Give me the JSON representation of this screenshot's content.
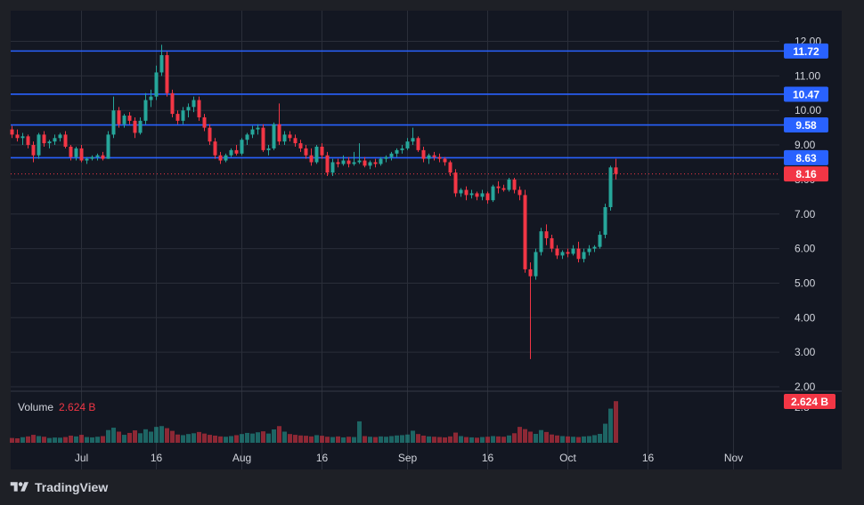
{
  "chart_data": {
    "type": "candlestick",
    "y_ticks": [
      "2.00",
      "3.00",
      "4.00",
      "5.00",
      "6.00",
      "7.00",
      "8.00",
      "9.00",
      "10.00",
      "11.00",
      "12.00"
    ],
    "ylim": [
      2.0,
      12.0
    ],
    "x_ticks": [
      {
        "label": "Jul",
        "bar": 13
      },
      {
        "label": "16",
        "bar": 27
      },
      {
        "label": "Aug",
        "bar": 43
      },
      {
        "label": "16",
        "bar": 58
      },
      {
        "label": "Sep",
        "bar": 74
      },
      {
        "label": "16",
        "bar": 89
      },
      {
        "label": "Oct",
        "bar": 104
      },
      {
        "label": "16",
        "bar": 119
      },
      {
        "label": "Nov",
        "bar": 135
      }
    ],
    "horizontal_lines": [
      {
        "value": 11.72,
        "label": "11.72",
        "color": "#2962ff"
      },
      {
        "value": 10.47,
        "label": "10.47",
        "color": "#2962ff"
      },
      {
        "value": 9.58,
        "label": "9.58",
        "color": "#2962ff"
      },
      {
        "value": 8.63,
        "label": "8.63",
        "color": "#2962ff"
      }
    ],
    "last_price": {
      "value": 8.16,
      "label": "8.16",
      "color": "#f23645"
    },
    "volume": {
      "label": "Volume",
      "value": "2.624 B",
      "badge": "2.624 B",
      "axis_label": "2.8"
    },
    "colors": {
      "up": "#26a69a",
      "down": "#f23645",
      "background": "#131722",
      "grid": "#2a2e39"
    },
    "candles": [
      [
        9.45,
        9.55,
        9.2,
        9.3
      ],
      [
        9.3,
        9.45,
        9.1,
        9.2
      ],
      [
        9.2,
        9.35,
        9.0,
        9.25
      ],
      [
        9.25,
        9.3,
        8.9,
        9.0
      ],
      [
        9.0,
        9.1,
        8.5,
        8.7
      ],
      [
        8.7,
        9.35,
        8.6,
        9.3
      ],
      [
        9.3,
        9.4,
        8.95,
        9.05
      ],
      [
        9.05,
        9.15,
        8.9,
        9.1
      ],
      [
        9.1,
        9.3,
        9.0,
        9.2
      ],
      [
        9.2,
        9.35,
        9.1,
        9.3
      ],
      [
        9.3,
        9.4,
        8.9,
        8.95
      ],
      [
        8.95,
        9.0,
        8.55,
        8.65
      ],
      [
        8.65,
        8.95,
        8.55,
        8.9
      ],
      [
        8.9,
        9.0,
        8.5,
        8.55
      ],
      [
        8.55,
        8.65,
        8.45,
        8.6
      ],
      [
        8.6,
        8.7,
        8.55,
        8.65
      ],
      [
        8.65,
        8.75,
        8.55,
        8.7
      ],
      [
        8.7,
        8.8,
        8.55,
        8.6
      ],
      [
        8.6,
        9.4,
        8.6,
        9.3
      ],
      [
        9.3,
        10.4,
        9.2,
        10.0
      ],
      [
        10.0,
        10.1,
        9.5,
        9.6
      ],
      [
        9.6,
        9.9,
        9.5,
        9.85
      ],
      [
        9.85,
        9.95,
        9.6,
        9.7
      ],
      [
        9.7,
        9.8,
        9.2,
        9.35
      ],
      [
        9.35,
        9.8,
        9.3,
        9.7
      ],
      [
        9.7,
        10.5,
        9.6,
        10.3
      ],
      [
        10.3,
        10.6,
        10.1,
        10.4
      ],
      [
        10.4,
        11.3,
        10.3,
        11.1
      ],
      [
        11.1,
        11.9,
        11.0,
        11.6
      ],
      [
        11.6,
        11.7,
        10.4,
        10.5
      ],
      [
        10.5,
        10.6,
        9.8,
        9.9
      ],
      [
        9.9,
        10.0,
        9.6,
        9.7
      ],
      [
        9.7,
        10.1,
        9.6,
        10.0
      ],
      [
        10.0,
        10.2,
        9.8,
        10.1
      ],
      [
        10.1,
        10.4,
        9.95,
        10.3
      ],
      [
        10.3,
        10.4,
        9.7,
        9.8
      ],
      [
        9.8,
        9.9,
        9.4,
        9.5
      ],
      [
        9.5,
        9.6,
        9.0,
        9.1
      ],
      [
        9.1,
        9.2,
        8.6,
        8.7
      ],
      [
        8.7,
        8.8,
        8.45,
        8.55
      ],
      [
        8.55,
        8.75,
        8.5,
        8.7
      ],
      [
        8.7,
        8.9,
        8.65,
        8.85
      ],
      [
        8.85,
        9.0,
        8.7,
        8.75
      ],
      [
        8.75,
        9.2,
        8.7,
        9.15
      ],
      [
        9.15,
        9.35,
        9.0,
        9.3
      ],
      [
        9.3,
        9.55,
        9.2,
        9.45
      ],
      [
        9.45,
        9.6,
        9.3,
        9.5
      ],
      [
        9.5,
        9.6,
        8.8,
        8.85
      ],
      [
        8.85,
        9.0,
        8.7,
        8.9
      ],
      [
        8.9,
        9.65,
        8.85,
        9.6
      ],
      [
        9.6,
        10.2,
        9.0,
        9.1
      ],
      [
        9.1,
        9.4,
        9.0,
        9.3
      ],
      [
        9.3,
        9.4,
        9.1,
        9.2
      ],
      [
        9.2,
        9.3,
        8.95,
        9.05
      ],
      [
        9.05,
        9.15,
        8.8,
        8.9
      ],
      [
        8.9,
        9.0,
        8.6,
        8.7
      ],
      [
        8.7,
        8.9,
        8.4,
        8.5
      ],
      [
        8.5,
        9.0,
        8.45,
        8.95
      ],
      [
        8.95,
        9.05,
        8.6,
        8.7
      ],
      [
        8.7,
        8.8,
        8.1,
        8.2
      ],
      [
        8.2,
        8.6,
        8.1,
        8.5
      ],
      [
        8.5,
        8.6,
        8.35,
        8.45
      ],
      [
        8.45,
        8.7,
        8.4,
        8.55
      ],
      [
        8.55,
        8.65,
        8.35,
        8.45
      ],
      [
        8.45,
        8.8,
        8.4,
        8.5
      ],
      [
        8.5,
        9.05,
        8.45,
        8.55
      ],
      [
        8.55,
        8.65,
        8.35,
        8.4
      ],
      [
        8.4,
        8.55,
        8.3,
        8.5
      ],
      [
        8.5,
        8.6,
        8.35,
        8.45
      ],
      [
        8.45,
        8.65,
        8.4,
        8.6
      ],
      [
        8.6,
        8.7,
        8.5,
        8.65
      ],
      [
        8.65,
        8.8,
        8.55,
        8.75
      ],
      [
        8.75,
        8.9,
        8.65,
        8.85
      ],
      [
        8.85,
        9.0,
        8.75,
        8.9
      ],
      [
        8.9,
        9.2,
        8.85,
        9.1
      ],
      [
        9.1,
        9.5,
        9.0,
        9.2
      ],
      [
        9.2,
        9.25,
        8.8,
        8.85
      ],
      [
        8.85,
        8.95,
        8.5,
        8.6
      ],
      [
        8.6,
        8.75,
        8.45,
        8.7
      ],
      [
        8.7,
        8.8,
        8.55,
        8.65
      ],
      [
        8.65,
        8.75,
        8.5,
        8.6
      ],
      [
        8.6,
        8.65,
        8.4,
        8.5
      ],
      [
        8.5,
        8.55,
        8.1,
        8.2
      ],
      [
        8.2,
        8.3,
        7.5,
        7.6
      ],
      [
        7.6,
        7.75,
        7.5,
        7.7
      ],
      [
        7.7,
        7.8,
        7.4,
        7.55
      ],
      [
        7.55,
        7.7,
        7.45,
        7.6
      ],
      [
        7.6,
        7.65,
        7.4,
        7.5
      ],
      [
        7.5,
        7.7,
        7.4,
        7.6
      ],
      [
        7.6,
        7.65,
        7.3,
        7.4
      ],
      [
        7.4,
        7.85,
        7.35,
        7.8
      ],
      [
        7.8,
        7.95,
        7.6,
        7.75
      ],
      [
        7.75,
        7.85,
        7.65,
        7.7
      ],
      [
        7.7,
        8.05,
        7.65,
        8.0
      ],
      [
        8.0,
        8.05,
        7.6,
        7.7
      ],
      [
        7.7,
        7.8,
        7.4,
        7.55
      ],
      [
        7.55,
        7.7,
        5.3,
        5.4
      ],
      [
        5.4,
        5.6,
        2.8,
        5.2
      ],
      [
        5.2,
        6.0,
        5.1,
        5.9
      ],
      [
        5.9,
        6.6,
        5.8,
        6.5
      ],
      [
        6.5,
        6.7,
        6.1,
        6.3
      ],
      [
        6.3,
        6.4,
        5.9,
        6.0
      ],
      [
        6.0,
        6.1,
        5.7,
        5.8
      ],
      [
        5.8,
        5.95,
        5.7,
        5.9
      ],
      [
        5.9,
        6.0,
        5.75,
        5.85
      ],
      [
        5.85,
        6.1,
        5.8,
        6.0
      ],
      [
        6.0,
        6.2,
        5.6,
        5.7
      ],
      [
        5.7,
        6.0,
        5.6,
        5.9
      ],
      [
        5.9,
        6.1,
        5.8,
        6.0
      ],
      [
        6.0,
        6.1,
        5.9,
        6.05
      ],
      [
        6.05,
        6.5,
        6.0,
        6.4
      ],
      [
        6.4,
        7.3,
        6.3,
        7.2
      ],
      [
        7.2,
        8.4,
        7.1,
        8.35
      ],
      [
        8.35,
        8.6,
        8.0,
        8.16
      ]
    ],
    "volumes": [
      0.3,
      0.28,
      0.35,
      0.4,
      0.5,
      0.42,
      0.38,
      0.3,
      0.33,
      0.32,
      0.36,
      0.45,
      0.4,
      0.5,
      0.36,
      0.34,
      0.38,
      0.42,
      0.8,
      0.95,
      0.7,
      0.5,
      0.62,
      0.78,
      0.6,
      0.85,
      0.7,
      1.0,
      1.05,
      0.92,
      0.75,
      0.52,
      0.48,
      0.55,
      0.6,
      0.68,
      0.58,
      0.5,
      0.45,
      0.4,
      0.38,
      0.42,
      0.48,
      0.55,
      0.62,
      0.58,
      0.66,
      0.72,
      0.58,
      0.84,
      1.05,
      0.7,
      0.55,
      0.5,
      0.46,
      0.44,
      0.4,
      0.48,
      0.44,
      0.38,
      0.36,
      0.4,
      0.34,
      0.38,
      0.36,
      1.35,
      0.42,
      0.38,
      0.36,
      0.4,
      0.38,
      0.42,
      0.46,
      0.48,
      0.52,
      0.76,
      0.55,
      0.45,
      0.4,
      0.38,
      0.36,
      0.34,
      0.4,
      0.64,
      0.42,
      0.36,
      0.34,
      0.32,
      0.36,
      0.38,
      0.42,
      0.4,
      0.38,
      0.46,
      0.6,
      1.0,
      0.86,
      0.7,
      0.56,
      0.8,
      0.68,
      0.52,
      0.46,
      0.42,
      0.4,
      0.38,
      0.36,
      0.4,
      0.42,
      0.48,
      0.56,
      1.2,
      2.15,
      2.62
    ]
  }
}
